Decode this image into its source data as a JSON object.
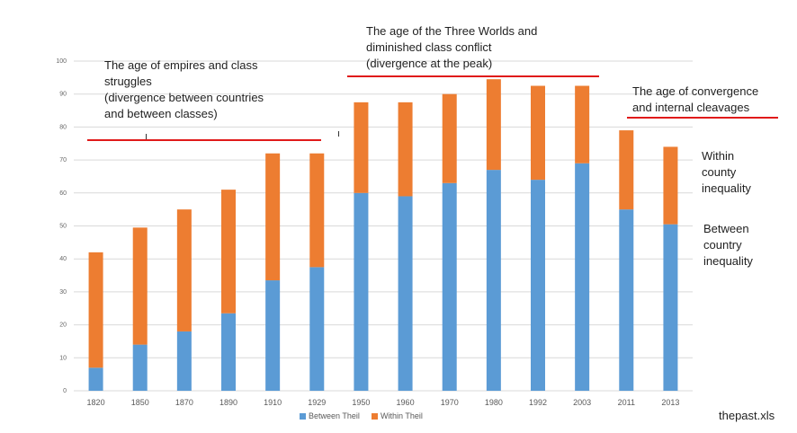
{
  "chart_data": {
    "type": "bar",
    "stacked": true,
    "categories": [
      "1820",
      "1850",
      "1870",
      "1890",
      "1910",
      "1929",
      "1950",
      "1960",
      "1970",
      "1980",
      "1992",
      "2003",
      "2011",
      "2013"
    ],
    "series": [
      {
        "name": "Between Theil",
        "color": "#5b9bd5",
        "values": [
          7,
          14,
          18,
          23.5,
          33.5,
          37.5,
          60,
          59,
          63,
          67,
          64,
          69,
          55,
          50.5
        ]
      },
      {
        "name": "Within Theil",
        "color": "#ed7d31",
        "values": [
          35,
          35.5,
          37,
          37.5,
          38.5,
          34.5,
          27.5,
          28.5,
          27,
          27.5,
          28.5,
          23.5,
          24,
          23.5
        ]
      }
    ],
    "ylim": [
      0,
      100
    ],
    "yticks": [
      0,
      10,
      20,
      30,
      40,
      50,
      60,
      70,
      80,
      90,
      100
    ],
    "grid": true,
    "legend": "bottom",
    "annotations": {
      "era1": "The age of empires and class\nstruggles\n(divergence between countries\nand between classes)",
      "era2": "The age of the Three Worlds  and\ndiminished class conflict\n(divergence at the peak)",
      "era3": "The age of convergence\nand internal cleavages",
      "within": "Within\ncounty\ninequality",
      "between": "Between\ncountry\ninequality"
    },
    "source": "thepast.xls"
  }
}
